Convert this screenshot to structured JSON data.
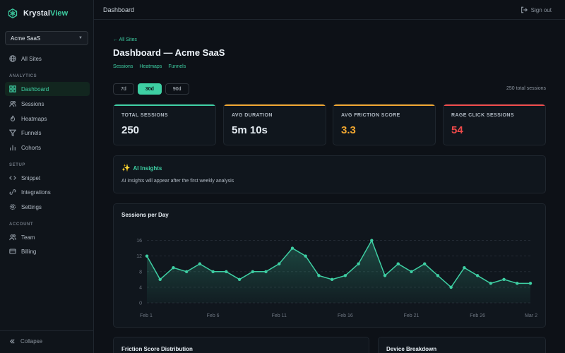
{
  "app": {
    "name_part1": "Krystal",
    "name_part2": "View"
  },
  "sidebar": {
    "org": "Acme SaaS",
    "all_sites": "All Sites",
    "analytics_label": "ANALYTICS",
    "analytics_items": [
      {
        "label": "Dashboard",
        "icon": "grid-icon",
        "active": true
      },
      {
        "label": "Sessions",
        "icon": "users-icon"
      },
      {
        "label": "Heatmaps",
        "icon": "fire-icon"
      },
      {
        "label": "Funnels",
        "icon": "funnel-icon"
      },
      {
        "label": "Cohorts",
        "icon": "bar-chart-icon"
      }
    ],
    "setup_label": "SETUP",
    "setup_items": [
      {
        "label": "Snippet",
        "icon": "code-icon"
      },
      {
        "label": "Integrations",
        "icon": "link-icon"
      },
      {
        "label": "Settings",
        "icon": "gear-icon"
      }
    ],
    "account_label": "ACCOUNT",
    "account_items": [
      {
        "label": "Team",
        "icon": "users-icon"
      },
      {
        "label": "Billing",
        "icon": "card-icon"
      }
    ],
    "collapse": "Collapse"
  },
  "topbar": {
    "title": "Dashboard",
    "signout": "Sign out"
  },
  "page": {
    "back_link": "← All Sites",
    "title": "Dashboard — Acme SaaS",
    "subnav": [
      "Sessions",
      "Heatmaps",
      "Funnels"
    ],
    "ranges": [
      "7d",
      "30d",
      "90d"
    ],
    "active_range": "30d",
    "total_sessions_text": "250 total sessions"
  },
  "stats": [
    {
      "label": "TOTAL SESSIONS",
      "value": "250",
      "color": "#3ecfa3",
      "value_color": "#e6edf3"
    },
    {
      "label": "AVG DURATION",
      "value": "5m 10s",
      "color": "#f0a630",
      "value_color": "#e6edf3"
    },
    {
      "label": "AVG FRICTION SCORE",
      "value": "3.3",
      "color": "#f0a630",
      "value_color": "#f0a630"
    },
    {
      "label": "RAGE CLICK SESSIONS",
      "value": "54",
      "color": "#f04a4a",
      "value_color": "#f04a4a"
    }
  ],
  "insights": {
    "title": "AI Insights",
    "body": "AI insights will appear after the first weekly analysis"
  },
  "chart_data": {
    "type": "area",
    "title": "Sessions per Day",
    "x": [
      "Feb 1",
      "Feb 2",
      "Feb 3",
      "Feb 4",
      "Feb 5",
      "Feb 6",
      "Feb 7",
      "Feb 8",
      "Feb 9",
      "Feb 10",
      "Feb 11",
      "Feb 12",
      "Feb 13",
      "Feb 14",
      "Feb 15",
      "Feb 16",
      "Feb 17",
      "Feb 18",
      "Feb 19",
      "Feb 20",
      "Feb 21",
      "Feb 22",
      "Feb 23",
      "Feb 24",
      "Feb 25",
      "Feb 26",
      "Feb 27",
      "Feb 28",
      "Mar 1",
      "Mar 2"
    ],
    "values": [
      12,
      6,
      9,
      8,
      10,
      8,
      8,
      6,
      8,
      8,
      10,
      14,
      12,
      7,
      6,
      7,
      10,
      16,
      7,
      10,
      8,
      10,
      7,
      4,
      9,
      7,
      5,
      6,
      5,
      5
    ],
    "x_tick_labels": [
      "Feb 1",
      "Feb 6",
      "Feb 11",
      "Feb 16",
      "Feb 21",
      "Feb 26",
      "Mar 2"
    ],
    "x_tick_indices": [
      0,
      5,
      10,
      15,
      20,
      25,
      29
    ],
    "y_ticks": [
      0,
      4,
      8,
      12,
      16
    ],
    "ylim": [
      0,
      17
    ],
    "grid": true,
    "color": "#3ecfa3"
  },
  "bottom": {
    "friction_title": "Friction Score Distribution",
    "device_title": "Device Breakdown"
  }
}
